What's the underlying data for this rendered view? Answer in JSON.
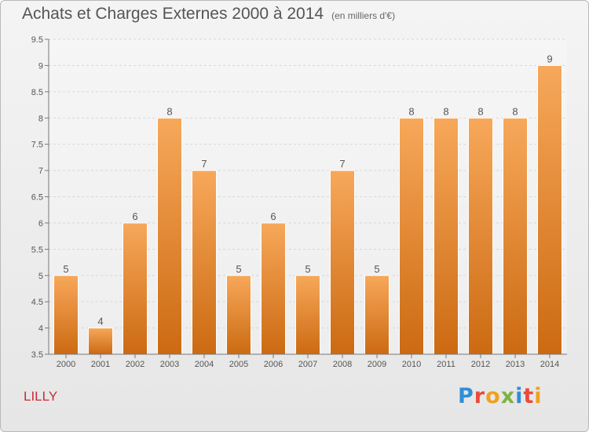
{
  "header": {
    "title": "Achats et Charges Externes 2000 à 2014",
    "unit": "(en milliers d'€)"
  },
  "footer": {
    "commune": "LILLY",
    "brand": "Proxiti"
  },
  "colors": {
    "bar_top": "#f7a85a",
    "bar_bottom": "#cc6a12",
    "bar_edge": "#ffffff",
    "commune": "#cc2936"
  },
  "chart_data": {
    "type": "bar",
    "categories": [
      "2000",
      "2001",
      "2002",
      "2003",
      "2004",
      "2005",
      "2006",
      "2007",
      "2008",
      "2009",
      "2010",
      "2011",
      "2012",
      "2013",
      "2014"
    ],
    "values": [
      5,
      4,
      6,
      8,
      7,
      5,
      6,
      5,
      7,
      5,
      8,
      8,
      8,
      8,
      9
    ],
    "ylim": [
      3.5,
      9.5
    ],
    "yticks": [
      3.5,
      4,
      4.5,
      5,
      5.5,
      6,
      6.5,
      7,
      7.5,
      8,
      8.5,
      9,
      9.5
    ],
    "grid": true
  }
}
